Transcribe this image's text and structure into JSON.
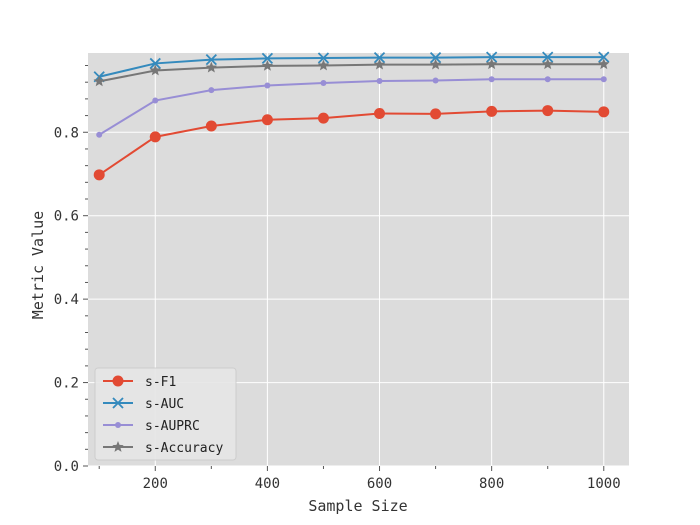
{
  "chart_data": {
    "type": "line",
    "title": "",
    "xlabel": "Sample Size",
    "ylabel": "Metric Value",
    "xlim": [
      80,
      1045
    ],
    "ylim": [
      0,
      0.99
    ],
    "xticks": [
      200,
      400,
      600,
      800,
      1000
    ],
    "yticks": [
      0.0,
      0.2,
      0.4,
      0.6,
      0.8
    ],
    "grid": true,
    "legend_position": "lower-left",
    "background_color": "#dcdcdc",
    "x": [
      100,
      200,
      300,
      400,
      500,
      600,
      700,
      800,
      900,
      1000
    ],
    "series": [
      {
        "name": "s-F1",
        "color": "#e24a33",
        "marker": "circle",
        "values": [
          0.698,
          0.789,
          0.815,
          0.83,
          0.834,
          0.845,
          0.844,
          0.85,
          0.852,
          0.849
        ]
      },
      {
        "name": "s-AUC",
        "color": "#348abd",
        "marker": "x",
        "values": [
          0.933,
          0.965,
          0.974,
          0.977,
          0.978,
          0.979,
          0.979,
          0.98,
          0.98,
          0.98
        ]
      },
      {
        "name": "s-AUPRC",
        "color": "#988ed5",
        "marker": "dot",
        "values": [
          0.794,
          0.876,
          0.901,
          0.912,
          0.918,
          0.923,
          0.924,
          0.927,
          0.927,
          0.927
        ]
      },
      {
        "name": "s-Accuracy",
        "color": "#777777",
        "marker": "star",
        "values": [
          0.922,
          0.948,
          0.955,
          0.959,
          0.96,
          0.962,
          0.962,
          0.963,
          0.963,
          0.963
        ]
      }
    ]
  }
}
